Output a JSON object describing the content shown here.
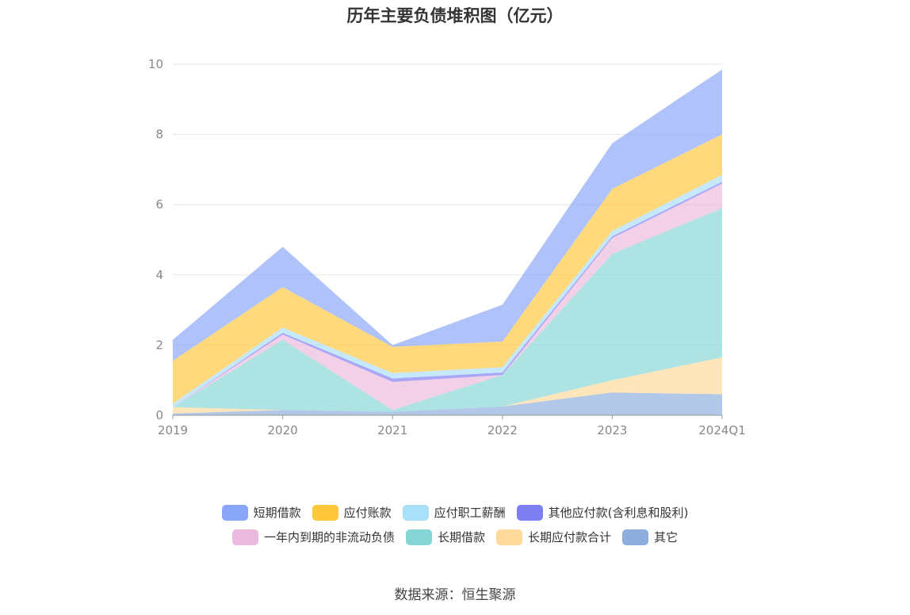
{
  "source_label": "数据来源：恒生聚源",
  "chart_data": {
    "type": "area",
    "stacked": true,
    "title": "历年主要负债堆积图（亿元）",
    "categories": [
      "2019",
      "2020",
      "2021",
      "2022",
      "2023",
      "2024Q1"
    ],
    "ylim": [
      0,
      10
    ],
    "yticks": [
      "0",
      "2",
      "4",
      "6",
      "8",
      "10"
    ],
    "grid": true,
    "legend_position": "bottom",
    "series": [
      {
        "name": "其它",
        "color": "#8eaedd",
        "values": [
          0.05,
          0.15,
          0.1,
          0.25,
          0.65,
          0.6
        ]
      },
      {
        "name": "长期应付款合计",
        "color": "#ffd99a",
        "values": [
          0.18,
          0.0,
          0.0,
          0.0,
          0.35,
          1.05
        ]
      },
      {
        "name": "长期借款",
        "color": "#86d6d6",
        "values": [
          0.0,
          2.0,
          0.05,
          0.9,
          3.6,
          4.25
        ]
      },
      {
        "name": "一年内到期的非流动负债",
        "color": "#eab9dd",
        "values": [
          0.0,
          0.15,
          0.8,
          0.0,
          0.45,
          0.7
        ]
      },
      {
        "name": "其他应付款(含利息和股利)",
        "color": "#7d7ef2",
        "values": [
          0.0,
          0.05,
          0.1,
          0.07,
          0.05,
          0.05
        ]
      },
      {
        "name": "应付职工薪酬",
        "color": "#a9dff7",
        "values": [
          0.1,
          0.15,
          0.15,
          0.15,
          0.15,
          0.2
        ]
      },
      {
        "name": "应付账款",
        "color": "#ffc73c",
        "values": [
          1.22,
          1.15,
          0.75,
          0.73,
          1.2,
          1.15
        ]
      },
      {
        "name": "短期借款",
        "color": "#89a6f8",
        "values": [
          0.6,
          1.15,
          0.05,
          1.05,
          1.3,
          1.85
        ]
      }
    ],
    "legend_order": [
      [
        "短期借款",
        "应付账款",
        "应付职工薪酬",
        "其他应付款(含利息和股利)"
      ],
      [
        "一年内到期的非流动负债",
        "长期借款",
        "长期应付款合计",
        "其它"
      ]
    ]
  }
}
